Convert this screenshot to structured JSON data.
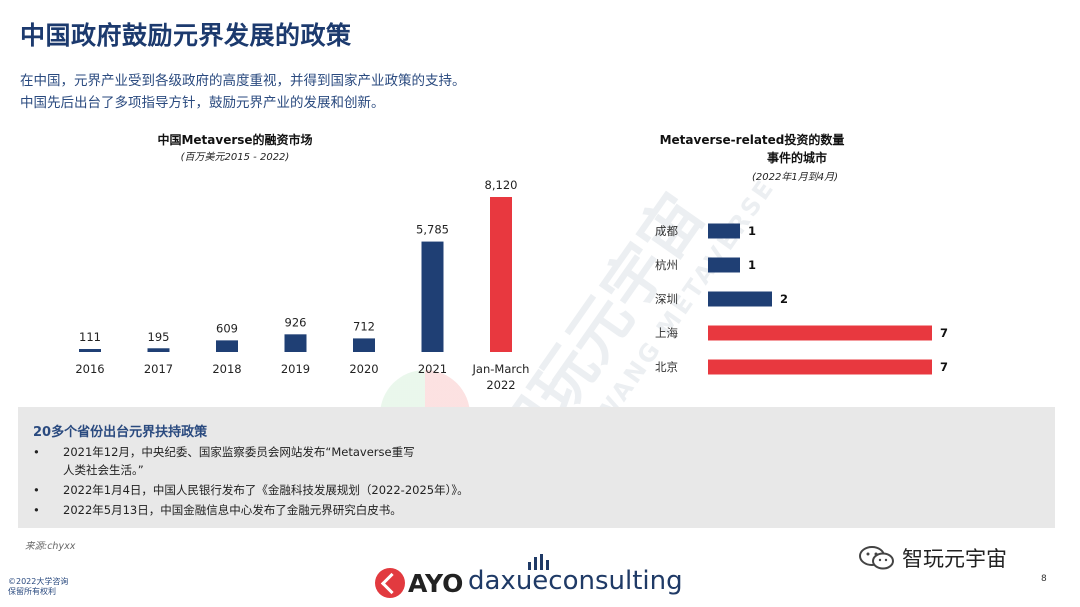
{
  "title": "中国政府鼓励元界发展的政策",
  "intro": {
    "line1": "在中国，元界产业受到各级政府的高度重视，并得到国家产业政策的支持。",
    "line2": "中国先后出台了多项指导方针，鼓励元界产业的发展和创新。"
  },
  "chart_data": [
    {
      "type": "bar",
      "title": "中国Metaverse的融资市场",
      "subtitle": "(百万美元2015 - 2022)",
      "categories": [
        "2016",
        "2017",
        "2018",
        "2019",
        "2020",
        "2021",
        "Jan-March\n2022"
      ],
      "category_lines": [
        [
          "2016"
        ],
        [
          "2017"
        ],
        [
          "2018"
        ],
        [
          "2019"
        ],
        [
          "2020"
        ],
        [
          "2021"
        ],
        [
          "Jan-March",
          "2022"
        ]
      ],
      "values": [
        111,
        195,
        609,
        926,
        712,
        5785,
        8120
      ],
      "value_labels": [
        "111",
        "195",
        "609",
        "926",
        "712",
        "5,785",
        "8,120"
      ],
      "colors": [
        "#1f3f74",
        "#1f3f74",
        "#1f3f74",
        "#1f3f74",
        "#1f3f74",
        "#1f3f74",
        "#e8383f"
      ],
      "ylim": [
        0,
        8120
      ],
      "grid": false
    },
    {
      "type": "bar",
      "orientation": "horizontal",
      "title_line1": "Metaverse-related投资的数量",
      "title_line2": "事件的城市",
      "subtitle": "(2022年1月到4月)",
      "categories": [
        "成都",
        "杭州",
        "深圳",
        "上海",
        "北京"
      ],
      "values": [
        1,
        1,
        2,
        7,
        7
      ],
      "value_labels": [
        "1",
        "1",
        "2",
        "7",
        "7"
      ],
      "colors": [
        "#1f3f74",
        "#1f3f74",
        "#1f3f74",
        "#e8383f",
        "#e8383f"
      ],
      "xlim": [
        0,
        7
      ],
      "grid": false
    }
  ],
  "watermark": {
    "text": "智玩元宇宙",
    "sub": "ZHIWANG METAVERSE"
  },
  "policy": {
    "title": "20多个省份出台元界扶持政策",
    "items": [
      {
        "line1": "2021年12月，中央纪委、国家监察委员会网站发布“Metaverse重写",
        "line2": "人类社会生活。”"
      },
      {
        "line1": "2022年1月4日，中国人民银行发布了《金融科技发展规划（2022-2025年）》。",
        "line2": ""
      },
      {
        "line1": "2022年5月13日，中国金融信息中心发布了金融元界研究白皮书。",
        "line2": ""
      }
    ],
    "bullet": "•"
  },
  "footer": {
    "source": "来源:chyxx",
    "copyright_line1": "©2022大学咨询",
    "copyright_line2": "保留所有权利",
    "logo_ayo": "AYO",
    "logo_daxue": "daxueconsulting",
    "page": "8",
    "wechat": "智玩元宇宙"
  },
  "colors": {
    "navy": "#1f3f74",
    "red": "#e8383f",
    "title": "#1c3a6e",
    "box": "#e8e8e8"
  }
}
